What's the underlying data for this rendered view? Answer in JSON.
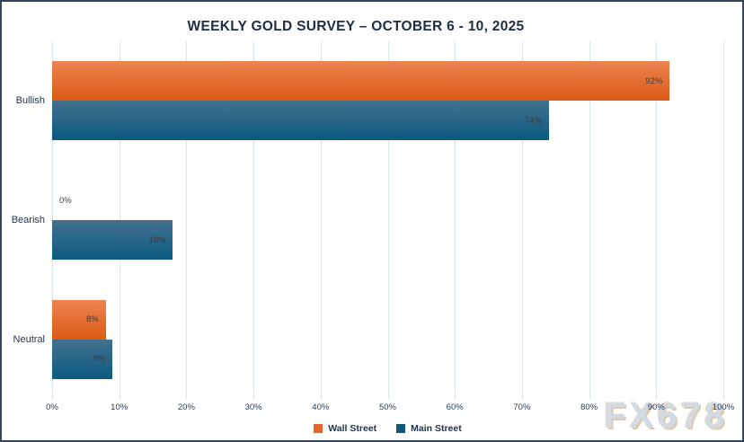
{
  "title": "WEEKLY GOLD SURVEY – OCTOBER 6 - 10, 2025",
  "watermark": "FX678",
  "colors": {
    "wall_street_top": "#ec8452",
    "wall_street_bottom": "#db5a13",
    "wall_street_legend": "#e8662a",
    "main_street_top": "#44708e",
    "main_street_bottom": "#0b5a81",
    "main_street_legend": "#16587c",
    "gridline": "#d9e3f2",
    "title_text": "#1d2d44",
    "axis_text": "#25405c",
    "data_label_text": "#3c3c3c",
    "border": "#32455c",
    "watermark_fill": "#ccd8e4",
    "watermark_shadow": "#dcc5a8"
  },
  "chart_data": {
    "type": "bar",
    "orientation": "horizontal",
    "title": "WEEKLY GOLD SURVEY – OCTOBER 6 - 10, 2025",
    "categories": [
      "Bullish",
      "Bearish",
      "Neutral"
    ],
    "series": [
      {
        "name": "Wall Street",
        "values": [
          92,
          0,
          8
        ]
      },
      {
        "name": "Main Street",
        "values": [
          74,
          18,
          9
        ]
      }
    ],
    "data_labels": [
      [
        "92%",
        "0%",
        "8%"
      ],
      [
        "74%",
        "18%",
        "9%"
      ]
    ],
    "x_ticks": [
      "0%",
      "10%",
      "20%",
      "30%",
      "40%",
      "50%",
      "60%",
      "70%",
      "80%",
      "90%",
      "100%"
    ],
    "xlim": [
      0,
      100
    ],
    "xlabel": "",
    "ylabel": "",
    "grid": true,
    "legend_position": "bottom"
  }
}
